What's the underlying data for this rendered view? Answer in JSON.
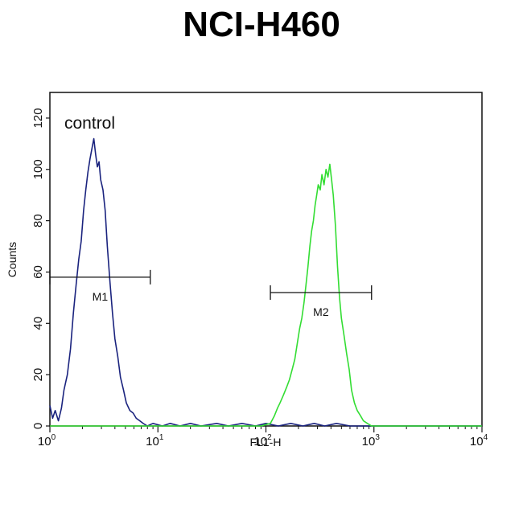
{
  "chart_data": {
    "type": "line",
    "title": "NCI-H460",
    "xlabel": "FL1-H",
    "ylabel": "Counts",
    "x_scale": "log",
    "xlim": [
      1,
      10000
    ],
    "ylim": [
      0,
      130
    ],
    "y_ticks": [
      0,
      20,
      40,
      60,
      80,
      100,
      120
    ],
    "x_ticks": [
      {
        "value": 1,
        "base": "10",
        "exp": "0"
      },
      {
        "value": 10,
        "base": "10",
        "exp": "1"
      },
      {
        "value": 100,
        "base": "10",
        "exp": "2"
      },
      {
        "value": 1000,
        "base": "10",
        "exp": "3"
      },
      {
        "value": 10000,
        "base": "10",
        "exp": "4"
      }
    ],
    "annotation": "control",
    "grid": false,
    "series": [
      {
        "color": "#1a237e",
        "points": [
          [
            1.0,
            8
          ],
          [
            1.06,
            3
          ],
          [
            1.12,
            6
          ],
          [
            1.2,
            2
          ],
          [
            1.28,
            7
          ],
          [
            1.35,
            14
          ],
          [
            1.45,
            20
          ],
          [
            1.55,
            30
          ],
          [
            1.65,
            44
          ],
          [
            1.75,
            55
          ],
          [
            1.85,
            65
          ],
          [
            1.95,
            72
          ],
          [
            2.05,
            84
          ],
          [
            2.15,
            92
          ],
          [
            2.25,
            99
          ],
          [
            2.35,
            104
          ],
          [
            2.45,
            108
          ],
          [
            2.55,
            112
          ],
          [
            2.65,
            106
          ],
          [
            2.75,
            101
          ],
          [
            2.85,
            103
          ],
          [
            2.95,
            96
          ],
          [
            3.1,
            92
          ],
          [
            3.25,
            84
          ],
          [
            3.4,
            70
          ],
          [
            3.6,
            56
          ],
          [
            3.8,
            44
          ],
          [
            4.0,
            34
          ],
          [
            4.25,
            27
          ],
          [
            4.5,
            19
          ],
          [
            4.8,
            14
          ],
          [
            5.1,
            9
          ],
          [
            5.5,
            6
          ],
          [
            5.9,
            5
          ],
          [
            6.3,
            3
          ],
          [
            6.8,
            2
          ],
          [
            7.3,
            1
          ],
          [
            8.0,
            0
          ],
          [
            9,
            1
          ],
          [
            11,
            0
          ],
          [
            13,
            1
          ],
          [
            16,
            0
          ],
          [
            20,
            1
          ],
          [
            25,
            0
          ],
          [
            35,
            1
          ],
          [
            45,
            0
          ],
          [
            60,
            1
          ],
          [
            80,
            0
          ],
          [
            100,
            1
          ],
          [
            130,
            0
          ],
          [
            170,
            1
          ],
          [
            220,
            0
          ],
          [
            280,
            1
          ],
          [
            350,
            0
          ],
          [
            450,
            1
          ],
          [
            600,
            0
          ],
          [
            800,
            0
          ],
          [
            1000,
            0
          ],
          [
            2000,
            0
          ],
          [
            5000,
            0
          ],
          [
            10000,
            0
          ]
        ]
      },
      {
        "color": "#33dd33",
        "points": [
          [
            1.0,
            0
          ],
          [
            5,
            0
          ],
          [
            10,
            0
          ],
          [
            30,
            0
          ],
          [
            60,
            0
          ],
          [
            90,
            0
          ],
          [
            110,
            1
          ],
          [
            120,
            4
          ],
          [
            128,
            7
          ],
          [
            135,
            9
          ],
          [
            145,
            12
          ],
          [
            155,
            15
          ],
          [
            165,
            18
          ],
          [
            175,
            22
          ],
          [
            185,
            26
          ],
          [
            195,
            32
          ],
          [
            205,
            38
          ],
          [
            215,
            42
          ],
          [
            225,
            48
          ],
          [
            235,
            55
          ],
          [
            245,
            62
          ],
          [
            255,
            70
          ],
          [
            265,
            76
          ],
          [
            275,
            80
          ],
          [
            285,
            86
          ],
          [
            295,
            90
          ],
          [
            305,
            94
          ],
          [
            318,
            92
          ],
          [
            330,
            98
          ],
          [
            345,
            94
          ],
          [
            360,
            100
          ],
          [
            375,
            97
          ],
          [
            390,
            102
          ],
          [
            405,
            96
          ],
          [
            420,
            90
          ],
          [
            440,
            78
          ],
          [
            460,
            62
          ],
          [
            480,
            50
          ],
          [
            500,
            42
          ],
          [
            530,
            35
          ],
          [
            560,
            28
          ],
          [
            590,
            22
          ],
          [
            620,
            14
          ],
          [
            660,
            9
          ],
          [
            700,
            6
          ],
          [
            750,
            4
          ],
          [
            800,
            2
          ],
          [
            870,
            1
          ],
          [
            950,
            0
          ],
          [
            1200,
            0
          ],
          [
            3000,
            0
          ],
          [
            10000,
            0
          ]
        ]
      }
    ],
    "markers": [
      {
        "label": "M1",
        "x_start": 1.0,
        "x_end": 8.5,
        "y": 58
      },
      {
        "label": "M2",
        "x_start": 110,
        "x_end": 950,
        "y": 52
      }
    ]
  }
}
